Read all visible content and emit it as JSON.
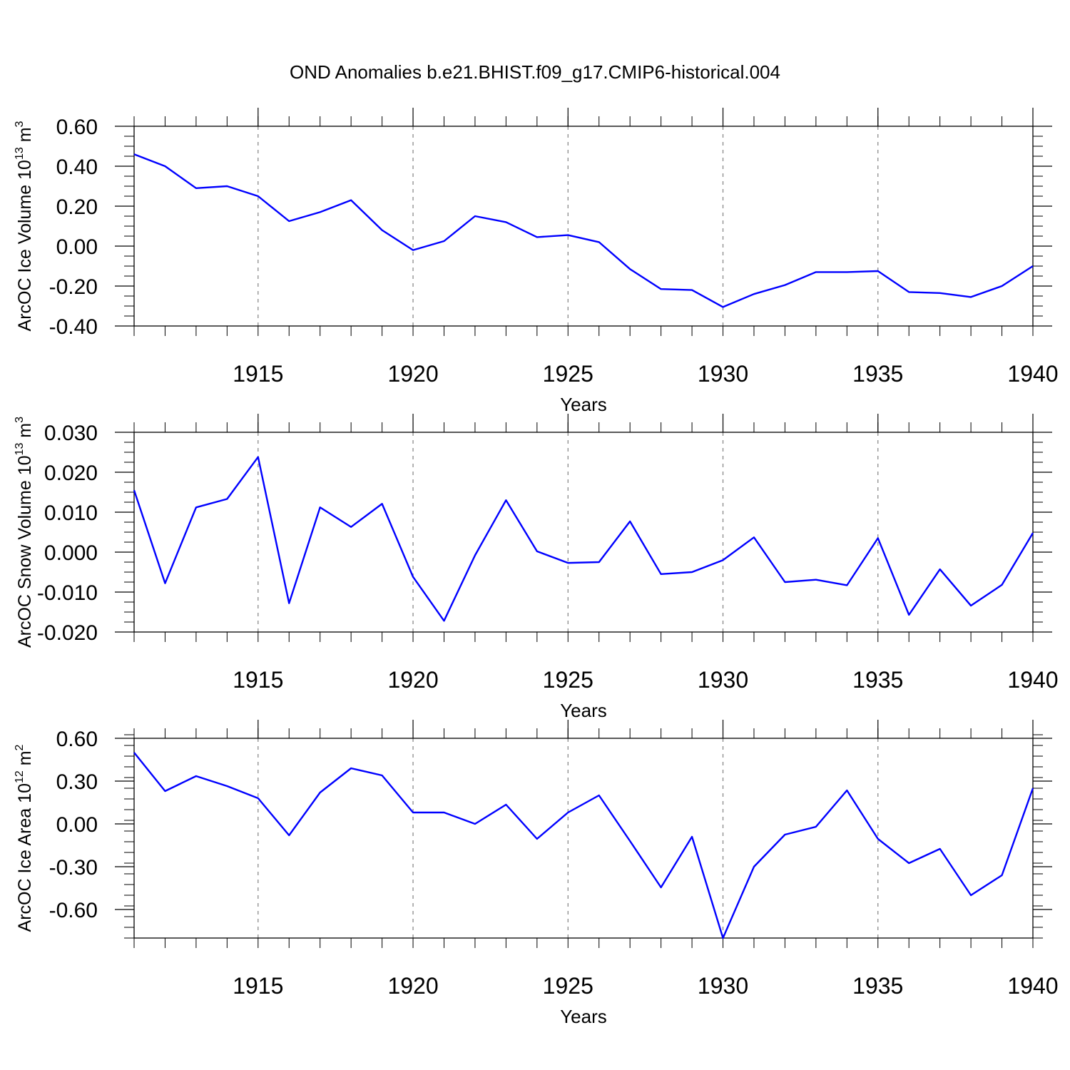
{
  "figure": {
    "title": "OND Anomalies b.e21.BHIST.f09_g17.CMIP6-historical.004",
    "line_color": "#0000ff",
    "grid_color": "#808080"
  },
  "chart_data": [
    {
      "type": "line",
      "ylabel": "ArcOC Ice Volume 10",
      "ylabel_sup": "13",
      "ylabel_unit": " m",
      "ylabel_unit_sup": "3",
      "xlabel": "Years",
      "xlim": [
        1911,
        1940
      ],
      "ylim": [
        -0.4,
        0.6
      ],
      "yticks": [
        -0.4,
        -0.2,
        0.0,
        0.2,
        0.4,
        0.6
      ],
      "ytick_labels": [
        "-0.40",
        "-0.20",
        "0.00",
        "0.20",
        "0.40",
        "0.60"
      ],
      "yminor_step": 0.05,
      "xticks": [
        1915,
        1920,
        1925,
        1930,
        1935,
        1940
      ],
      "xtick_labels": [
        "1915",
        "1920",
        "1925",
        "1930",
        "1935",
        "1940"
      ],
      "grid": "vertical dashed at major x ticks",
      "x": [
        1911,
        1912,
        1913,
        1914,
        1915,
        1916,
        1917,
        1918,
        1919,
        1920,
        1921,
        1922,
        1923,
        1924,
        1925,
        1926,
        1927,
        1928,
        1929,
        1930,
        1931,
        1932,
        1933,
        1934,
        1935,
        1936,
        1937,
        1938,
        1939,
        1940
      ],
      "values": [
        0.46,
        0.4,
        0.29,
        0.3,
        0.25,
        0.125,
        0.17,
        0.23,
        0.08,
        -0.02,
        0.025,
        0.15,
        0.12,
        0.045,
        0.055,
        0.02,
        -0.115,
        -0.215,
        -0.22,
        -0.305,
        -0.24,
        -0.195,
        -0.13,
        -0.13,
        -0.125,
        -0.23,
        -0.235,
        -0.255,
        -0.2,
        -0.1
      ]
    },
    {
      "type": "line",
      "ylabel": "ArcOC Snow Volume 10",
      "ylabel_sup": "13",
      "ylabel_unit": " m",
      "ylabel_unit_sup": "3",
      "xlabel": "Years",
      "xlim": [
        1911,
        1940
      ],
      "ylim": [
        -0.02,
        0.03
      ],
      "yticks": [
        -0.02,
        -0.01,
        0.0,
        0.01,
        0.02,
        0.03
      ],
      "ytick_labels": [
        "-0.020",
        "-0.010",
        "0.000",
        "0.010",
        "0.020",
        "0.030"
      ],
      "yminor_step": 0.0025,
      "xticks": [
        1915,
        1920,
        1925,
        1930,
        1935,
        1940
      ],
      "xtick_labels": [
        "1915",
        "1920",
        "1925",
        "1930",
        "1935",
        "1940"
      ],
      "grid": "vertical dashed at major x ticks",
      "x": [
        1911,
        1912,
        1913,
        1914,
        1915,
        1916,
        1917,
        1918,
        1919,
        1920,
        1921,
        1922,
        1923,
        1924,
        1925,
        1926,
        1927,
        1928,
        1929,
        1930,
        1931,
        1932,
        1933,
        1934,
        1935,
        1936,
        1937,
        1938,
        1939,
        1940
      ],
      "values": [
        0.0155,
        -0.0078,
        0.0112,
        0.0133,
        0.0238,
        -0.0128,
        0.0112,
        0.0063,
        0.0121,
        -0.0062,
        -0.0172,
        -0.0008,
        0.013,
        0.0002,
        -0.0027,
        -0.0025,
        0.0077,
        -0.0055,
        -0.005,
        -0.002,
        0.0037,
        -0.0075,
        -0.0069,
        -0.0083,
        0.0035,
        -0.0157,
        -0.0043,
        -0.0134,
        -0.0082,
        0.0048
      ]
    },
    {
      "type": "line",
      "ylabel": "ArcOC Ice Area 10",
      "ylabel_sup": "12",
      "ylabel_unit": " m",
      "ylabel_unit_sup": "2",
      "xlabel": "Years",
      "xlim": [
        1911,
        1940
      ],
      "ylim": [
        -0.8,
        0.6
      ],
      "yticks": [
        -0.6,
        -0.3,
        0.0,
        0.3,
        0.6
      ],
      "ytick_labels": [
        "-0.60",
        "-0.30",
        "0.00",
        "0.30",
        "0.60"
      ],
      "yminor_step": 0.075,
      "xticks": [
        1915,
        1920,
        1925,
        1930,
        1935,
        1940
      ],
      "xtick_labels": [
        "1915",
        "1920",
        "1925",
        "1930",
        "1935",
        "1940"
      ],
      "grid": "vertical dashed at major x ticks",
      "x": [
        1911,
        1912,
        1913,
        1914,
        1915,
        1916,
        1917,
        1918,
        1919,
        1920,
        1921,
        1922,
        1923,
        1924,
        1925,
        1926,
        1927,
        1928,
        1929,
        1930,
        1931,
        1932,
        1933,
        1934,
        1935,
        1936,
        1937,
        1938,
        1939,
        1940
      ],
      "values": [
        0.5,
        0.23,
        0.335,
        0.265,
        0.18,
        -0.08,
        0.22,
        0.39,
        0.34,
        0.08,
        0.08,
        0.0,
        0.135,
        -0.105,
        0.08,
        0.2,
        -0.12,
        -0.445,
        -0.09,
        -0.8,
        -0.3,
        -0.075,
        -0.02,
        0.235,
        -0.105,
        -0.275,
        -0.175,
        -0.5,
        -0.36,
        0.25
      ]
    }
  ]
}
